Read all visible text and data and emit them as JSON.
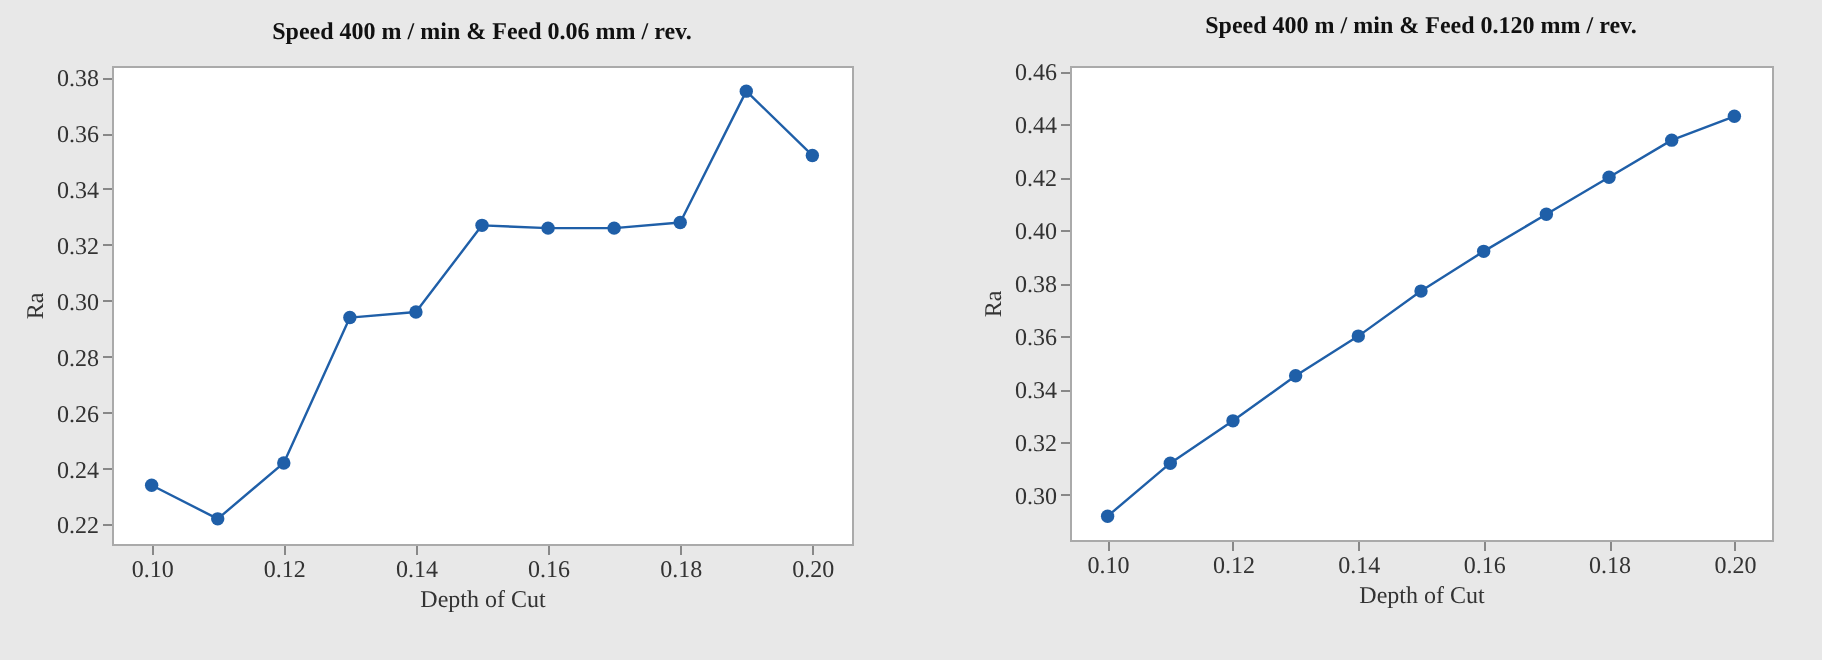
{
  "chart_data": [
    {
      "type": "line",
      "title": "Speed 400 m / min & Feed 0.06 mm / rev.",
      "xlabel": "Depth of Cut",
      "ylabel": "Ra",
      "marker": "circle",
      "grid": false,
      "legend": false,
      "x": [
        0.1,
        0.11,
        0.12,
        0.13,
        0.14,
        0.15,
        0.16,
        0.17,
        0.18,
        0.19,
        0.2
      ],
      "series": [
        {
          "color": "#1f5fa8",
          "values": [
            0.234,
            0.222,
            0.242,
            0.294,
            0.296,
            0.327,
            0.326,
            0.326,
            0.328,
            0.375,
            0.352
          ]
        }
      ],
      "xlim": [
        0.094,
        0.206
      ],
      "ylim": [
        0.213,
        0.384
      ],
      "xticks": [
        {
          "value": 0.1,
          "label": "0.10"
        },
        {
          "value": 0.12,
          "label": "0.12"
        },
        {
          "value": 0.14,
          "label": "0.14"
        },
        {
          "value": 0.16,
          "label": "0.16"
        },
        {
          "value": 0.18,
          "label": "0.18"
        },
        {
          "value": 0.2,
          "label": "0.20"
        }
      ],
      "yticks": [
        {
          "value": 0.22,
          "label": "0.22"
        },
        {
          "value": 0.24,
          "label": "0.24"
        },
        {
          "value": 0.26,
          "label": "0.26"
        },
        {
          "value": 0.28,
          "label": "0.28"
        },
        {
          "value": 0.3,
          "label": "0.30"
        },
        {
          "value": 0.32,
          "label": "0.32"
        },
        {
          "value": 0.34,
          "label": "0.34"
        },
        {
          "value": 0.36,
          "label": "0.36"
        },
        {
          "value": 0.38,
          "label": "0.38"
        }
      ]
    },
    {
      "type": "line",
      "title": "Speed 400 m / min & Feed 0.120 mm / rev.",
      "xlabel": "Depth of Cut",
      "ylabel": "Ra",
      "marker": "circle",
      "grid": false,
      "legend": false,
      "x": [
        0.1,
        0.11,
        0.12,
        0.13,
        0.14,
        0.15,
        0.16,
        0.17,
        0.18,
        0.19,
        0.2
      ],
      "series": [
        {
          "color": "#1f5fa8",
          "values": [
            0.292,
            0.312,
            0.328,
            0.345,
            0.36,
            0.377,
            0.392,
            0.406,
            0.42,
            0.434,
            0.443
          ]
        }
      ],
      "xlim": [
        0.094,
        0.206
      ],
      "ylim": [
        0.283,
        0.462
      ],
      "xticks": [
        {
          "value": 0.1,
          "label": "0.10"
        },
        {
          "value": 0.12,
          "label": "0.12"
        },
        {
          "value": 0.14,
          "label": "0.14"
        },
        {
          "value": 0.16,
          "label": "0.16"
        },
        {
          "value": 0.18,
          "label": "0.18"
        },
        {
          "value": 0.2,
          "label": "0.20"
        }
      ],
      "yticks": [
        {
          "value": 0.3,
          "label": "0.30"
        },
        {
          "value": 0.32,
          "label": "0.32"
        },
        {
          "value": 0.34,
          "label": "0.34"
        },
        {
          "value": 0.36,
          "label": "0.36"
        },
        {
          "value": 0.38,
          "label": "0.38"
        },
        {
          "value": 0.4,
          "label": "0.40"
        },
        {
          "value": 0.42,
          "label": "0.42"
        },
        {
          "value": 0.44,
          "label": "0.44"
        },
        {
          "value": 0.46,
          "label": "0.46"
        }
      ]
    }
  ]
}
